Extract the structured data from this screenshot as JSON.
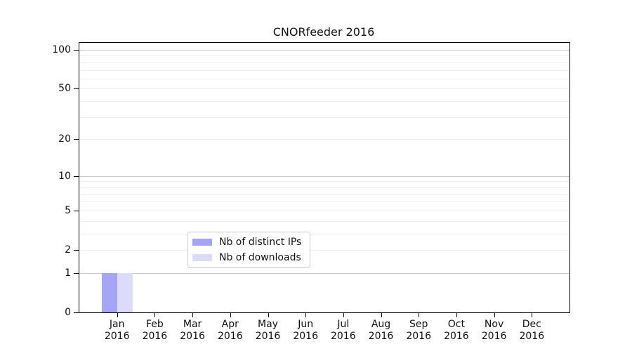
{
  "chart_data": {
    "type": "bar",
    "title": "CNORfeeder 2016",
    "categories": [
      "Jan",
      "Feb",
      "Mar",
      "Apr",
      "May",
      "Jun",
      "Jul",
      "Aug",
      "Sep",
      "Oct",
      "Nov",
      "Dec"
    ],
    "category_year": "2016",
    "series": [
      {
        "name": "Nb of distinct IPs",
        "color": "#a5a5f8",
        "values": [
          1,
          0,
          0,
          0,
          0,
          0,
          0,
          0,
          0,
          0,
          0,
          0
        ]
      },
      {
        "name": "Nb of downloads",
        "color": "#dcdcfa",
        "values": [
          1,
          0,
          0,
          0,
          0,
          0,
          0,
          0,
          0,
          0,
          0,
          0
        ]
      }
    ],
    "yscale": "log1p",
    "ylim": [
      0,
      113
    ],
    "yticks": [
      0,
      1,
      2,
      5,
      10,
      20,
      50,
      100
    ],
    "gridlines_major": [
      1,
      10,
      100
    ],
    "gridlines_minor": [
      2,
      3,
      4,
      5,
      6,
      7,
      8,
      9,
      20,
      30,
      40,
      50,
      60,
      70,
      80,
      90
    ],
    "grid": true,
    "legend_position": "inside-bottom-center",
    "xlabel": "",
    "ylabel": ""
  },
  "colors": {
    "grid_major": "#c9c9c9",
    "grid_minor": "#ededed",
    "spine": "#000000",
    "text": "#111111",
    "legend_border": "#cccccc"
  }
}
